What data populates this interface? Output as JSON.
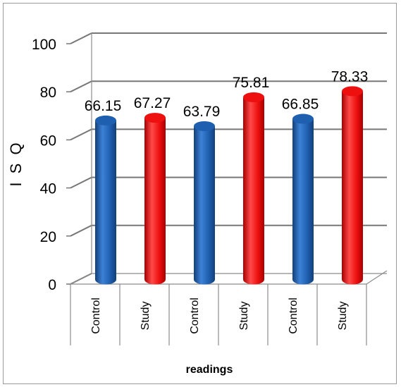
{
  "chart_data": {
    "type": "bar",
    "categories": [
      "Control",
      "Study",
      "Control",
      "Study",
      "Control",
      "Study"
    ],
    "values": [
      66.15,
      67.27,
      63.79,
      75.81,
      66.85,
      78.33
    ],
    "data_labels": [
      "66.15",
      "67.27",
      "63.79",
      "75.81",
      "66.85",
      "78.33"
    ],
    "bar_colors": [
      "#1f5fb0",
      "#ee0f0f",
      "#1f5fb0",
      "#ee0f0f",
      "#1f5fb0",
      "#ee0f0f"
    ],
    "ylabel": "I S Q",
    "xlabel": "readings",
    "ylim": [
      0,
      100
    ],
    "yticks": [
      "0",
      "20",
      "40",
      "60",
      "80",
      "100"
    ],
    "grid": true,
    "legend": "none"
  }
}
